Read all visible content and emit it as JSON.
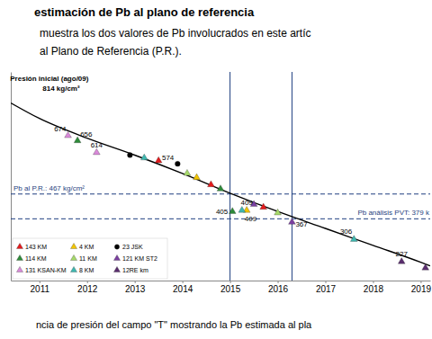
{
  "heading": "estimación de Pb al plano de referencia",
  "paragraph": [
    "muestra los dos valores de Pb involucrados en este artíc",
    "al Plano de Referencia (P.R.)."
  ],
  "caption": "ncia de presión del campo \"T\" mostrando la Pb estimada al pla",
  "chart_data": {
    "type": "scatter",
    "xlim": [
      2010.4,
      2019.2
    ],
    "xticks": [
      2011,
      2012,
      2013,
      2014,
      2015,
      2016,
      2017,
      2018,
      2019
    ],
    "ylim": [
      160,
      900
    ],
    "yticks": [],
    "tick_labels": "x",
    "grid": false,
    "legend": "lower left",
    "series": [
      {
        "name": "143 KM",
        "color": "#e31a1c",
        "marker": "triangle",
        "x": [
          2013.5,
          2014.6,
          2015.7
        ],
        "values": [
          585,
          500,
          420
        ]
      },
      {
        "name": "4 KM",
        "color": "#f2c500",
        "marker": "triangle",
        "x": [
          2014.3,
          2015.35
        ],
        "values": [
          525,
          409
        ]
      },
      {
        "name": "23 JSK",
        "color": "#000000",
        "marker": "circle",
        "x": [
          2012.9,
          2013.9
        ],
        "values": [
          605,
          574
        ]
      },
      {
        "name": "114 KM",
        "color": "#2e8b3a",
        "marker": "triangle",
        "x": [
          2011.8,
          2014.8,
          2015.05
        ],
        "values": [
          656,
          485,
          405
        ]
      },
      {
        "name": "11 KM",
        "color": "#a6d96a",
        "marker": "triangle",
        "x": [
          2014.1,
          2016.0
        ],
        "values": [
          540,
          400
        ]
      },
      {
        "name": "121 KM ST2",
        "color": "#7b3fa0",
        "marker": "triangle",
        "x": [
          2015.5,
          2016.3
        ],
        "values": [
          430,
          367
        ]
      },
      {
        "name": "131 KSAN-KM",
        "color": "#d98ad9",
        "marker": "triangle",
        "x": [
          2011.6,
          2012.2
        ],
        "values": [
          674,
          614
        ]
      },
      {
        "name": "8 KM",
        "color": "#3fb8b0",
        "marker": "triangle",
        "x": [
          2013.2,
          2015.25,
          2017.6
        ],
        "values": [
          595,
          409,
          306
        ]
      },
      {
        "name": "12RE km",
        "color": "#5a2d6e",
        "marker": "triangle",
        "x": [
          2018.6,
          2019.1
        ],
        "values": [
          227,
          205
        ]
      }
    ],
    "trend": {
      "color": "#000000",
      "line_style": "solid",
      "x": [
        2010.4,
        2011,
        2012,
        2013,
        2014,
        2015,
        2016,
        2017,
        2018,
        2019,
        2019.2
      ],
      "values": [
        790,
        735,
        665,
        605,
        540,
        470,
        405,
        345,
        285,
        225,
        212
      ]
    },
    "reference_lines": [
      {
        "y": 467,
        "label": "Pb al P.R.: 467 kg/cm²",
        "color": "#1f3f80",
        "line_style": "dashed"
      },
      {
        "y": 379,
        "label": "Pb análisis PVT: 379 k",
        "color": "#1f3f80",
        "line_style": "dashed"
      }
    ],
    "vertical_lines": [
      2015,
      2016.3
    ],
    "initial_pressure": {
      "x": 2010.5,
      "y": 814,
      "label": "Presión inicial (ago/09)",
      "value_label": "814 kg/cm²"
    },
    "annotations": [
      {
        "x": 2011.6,
        "y": 674,
        "label": "674"
      },
      {
        "x": 2011.8,
        "y": 656,
        "label": "656"
      },
      {
        "x": 2012.2,
        "y": 614,
        "label": "614"
      },
      {
        "x": 2013.9,
        "y": 574,
        "label": "574"
      },
      {
        "x": 2015.35,
        "y": 409,
        "label": "409"
      },
      {
        "x": 2015.05,
        "y": 405,
        "label": "405"
      },
      {
        "x": 2015.25,
        "y": 409,
        "label": "409"
      },
      {
        "x": 2016.3,
        "y": 367,
        "label": "367"
      },
      {
        "x": 2017.6,
        "y": 306,
        "label": "306"
      },
      {
        "x": 2018.6,
        "y": 227,
        "label": "227"
      }
    ]
  }
}
